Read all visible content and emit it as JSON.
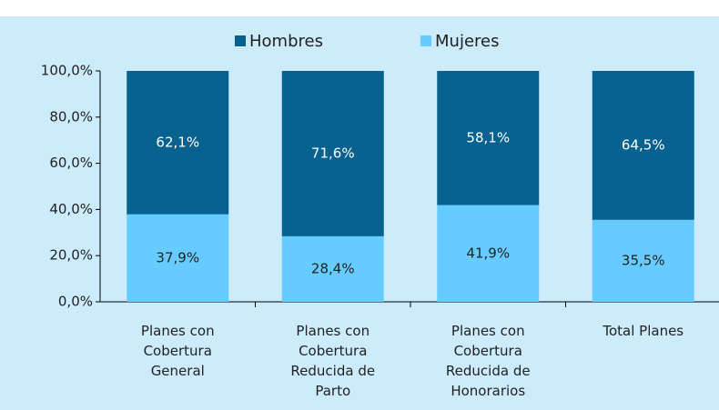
{
  "chart_data": {
    "type": "stacked_bar",
    "categories": [
      "Planes con\nCobertura\nGeneral",
      "Planes con\nCobertura\nReducida de\nParto",
      "Planes con\nCobertura\nReducida  de\nHonorarios",
      "Total Planes"
    ],
    "series": [
      {
        "name": "Mujeres",
        "color": "#66ccff",
        "values": [
          37.9,
          28.4,
          41.9,
          35.5
        ],
        "value_labels": [
          "37,9%",
          "28,4%",
          "41,9%",
          "35,5%"
        ]
      },
      {
        "name": "Hombres",
        "color": "#07628f",
        "values": [
          62.1,
          71.6,
          58.1,
          64.5
        ],
        "value_labels": [
          "62,1%",
          "71,6%",
          "58,1%",
          "64,5%"
        ]
      }
    ],
    "legend_order": [
      "Hombres",
      "Mujeres"
    ],
    "ylim": [
      0,
      100
    ],
    "yticks": [
      {
        "value": 0,
        "label": "0,0%"
      },
      {
        "value": 20,
        "label": "20,0%"
      },
      {
        "value": 40,
        "label": "40,0%"
      },
      {
        "value": 60,
        "label": "60,0%"
      },
      {
        "value": 80,
        "label": "80,0%"
      },
      {
        "value": 100,
        "label": "100,0%"
      }
    ],
    "background": "#ccebfb"
  }
}
